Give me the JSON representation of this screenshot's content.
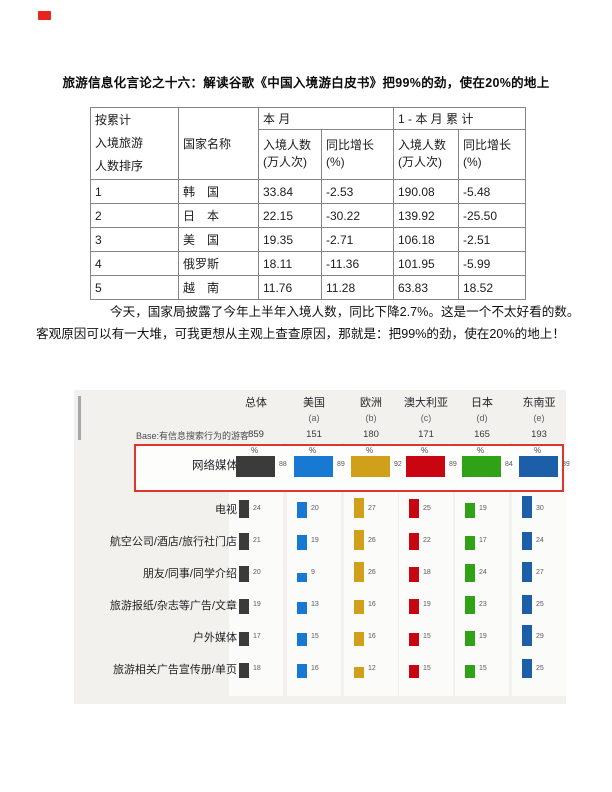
{
  "page": {
    "title": "旅游信息化言论之十六：解读谷歌《中国入境游白皮书》把99%的劲，使在20%的地上",
    "paragraph": "今天，国家局披露了今年上半年入境人数，同比下降2.7%。这是一个不太好看的数。客观原因可以有一大堆，可我更想从主观上查查原因，那就是：把99%的劲，使在20%的地上！"
  },
  "table": {
    "header": {
      "rank_line1": "按累计",
      "rank_line2": "入境旅游",
      "rank_line3": "人数排序",
      "country": "国家名称",
      "month_group": "本  月",
      "cumulative_group": "1 - 本 月 累 计",
      "arrivals_line1": "入境人数",
      "arrivals_line2": "(万人次)",
      "growth_line1": "同比增长",
      "growth_line2": "(%)"
    },
    "rows": [
      {
        "rank": "1",
        "country": "韩　国",
        "month_arrivals": "33.84",
        "month_growth": "-2.53",
        "cum_arrivals": "190.08",
        "cum_growth": "-5.48"
      },
      {
        "rank": "2",
        "country": "日　本",
        "month_arrivals": "22.15",
        "month_growth": "-30.22",
        "cum_arrivals": "139.92",
        "cum_growth": "-25.50"
      },
      {
        "rank": "3",
        "country": "美　国",
        "month_arrivals": "19.35",
        "month_growth": "-2.71",
        "cum_arrivals": "106.18",
        "cum_growth": "-2.51"
      },
      {
        "rank": "4",
        "country": "俄罗斯",
        "month_arrivals": "18.11",
        "month_growth": "-11.36",
        "cum_arrivals": "101.95",
        "cum_growth": "-5.99"
      },
      {
        "rank": "5",
        "country": "越　南",
        "month_arrivals": "11.76",
        "month_growth": "11.28",
        "cum_arrivals": "63.83",
        "cum_growth": "18.52"
      }
    ]
  },
  "chart_data": {
    "type": "bar",
    "unit": "%",
    "categories": [
      "总体",
      "美国",
      "欧洲",
      "澳大利亚",
      "日本",
      "东南亚"
    ],
    "category_letters": [
      "",
      "(a)",
      "(b)",
      "(c)",
      "(d)",
      "(e)"
    ],
    "base_label": "Base:有信息搜索行为的游客",
    "base_values": [
      859,
      151,
      180,
      171,
      165,
      193
    ],
    "series_colors": [
      "#3b3b3b",
      "#1879d2",
      "#d1a01b",
      "#c90511",
      "#2fa315",
      "#1c5fa8"
    ],
    "percent_symbol": "%",
    "highlight_border_color": "#e0352b",
    "rows": [
      {
        "label": "网络媒体",
        "values": [
          88,
          89,
          92,
          89,
          84,
          89
        ],
        "highlight": true
      },
      {
        "label": "电视",
        "values": [
          24,
          20,
          27,
          25,
          19,
          30
        ],
        "highlight": false
      },
      {
        "label": "航空公司/酒店/旅行社门店",
        "values": [
          21,
          19,
          26,
          22,
          17,
          24
        ],
        "highlight": false
      },
      {
        "label": "朋友/同事/同学介绍",
        "values": [
          20,
          9,
          26,
          18,
          24,
          27
        ],
        "highlight": false
      },
      {
        "label": "旅游报纸/杂志等广告/文章",
        "values": [
          19,
          13,
          16,
          19,
          23,
          25
        ],
        "highlight": false
      },
      {
        "label": "户外媒体",
        "values": [
          17,
          15,
          16,
          15,
          19,
          29
        ],
        "highlight": false
      },
      {
        "label": "旅游相关广告宣传册/单页",
        "values": [
          18,
          16,
          12,
          15,
          15,
          25
        ],
        "highlight": false
      }
    ],
    "layout": {
      "grid": false,
      "legend": "none",
      "value_labels": true,
      "ylim": [
        0,
        100
      ]
    }
  }
}
